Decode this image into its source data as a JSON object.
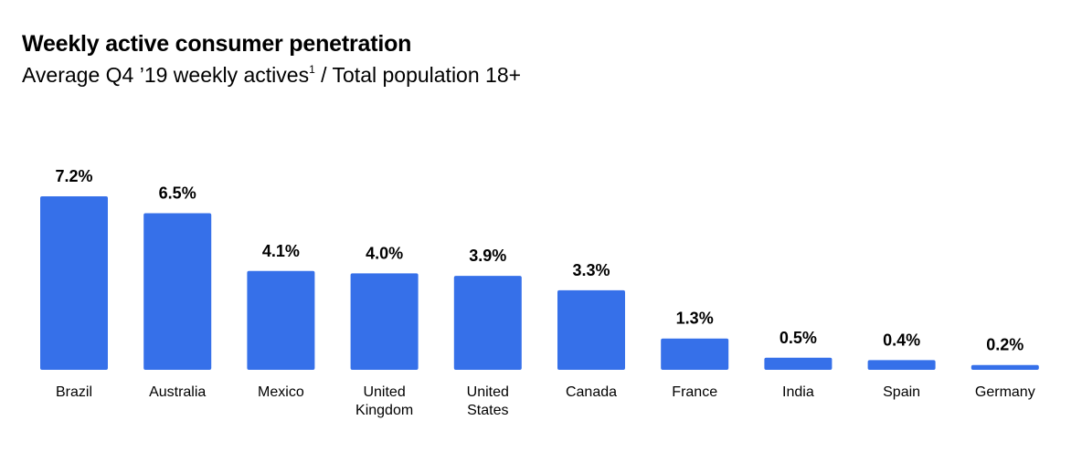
{
  "chart_data": {
    "type": "bar",
    "title": "Weekly active consumer penetration",
    "subtitle": {
      "text_before": "Average Q4 ’19 weekly actives",
      "footnote": "1",
      "text_after": " / Total population 18+"
    },
    "categories": [
      "Brazil",
      "Australia",
      "Mexico",
      "United Kingdom",
      "United States",
      "Canada",
      "France",
      "India",
      "Spain",
      "Germany"
    ],
    "category_lines": [
      [
        "Brazil"
      ],
      [
        "Australia"
      ],
      [
        "Mexico"
      ],
      [
        "United",
        "Kingdom"
      ],
      [
        "United",
        "States"
      ],
      [
        "Canada"
      ],
      [
        "France"
      ],
      [
        "India"
      ],
      [
        "Spain"
      ],
      [
        "Germany"
      ]
    ],
    "values": [
      7.2,
      6.5,
      4.1,
      4.0,
      3.9,
      3.3,
      1.3,
      0.5,
      0.4,
      0.2
    ],
    "data_labels": [
      "7.2%",
      "6.5%",
      "4.1%",
      "4.0%",
      "3.9%",
      "3.3%",
      "1.3%",
      "0.5%",
      "0.4%",
      "0.2%"
    ],
    "ylim": [
      0,
      7.2
    ],
    "xlabel": "",
    "ylabel": "",
    "grid": false,
    "bar_color": "#3670e9",
    "text_color": "#000000"
  }
}
